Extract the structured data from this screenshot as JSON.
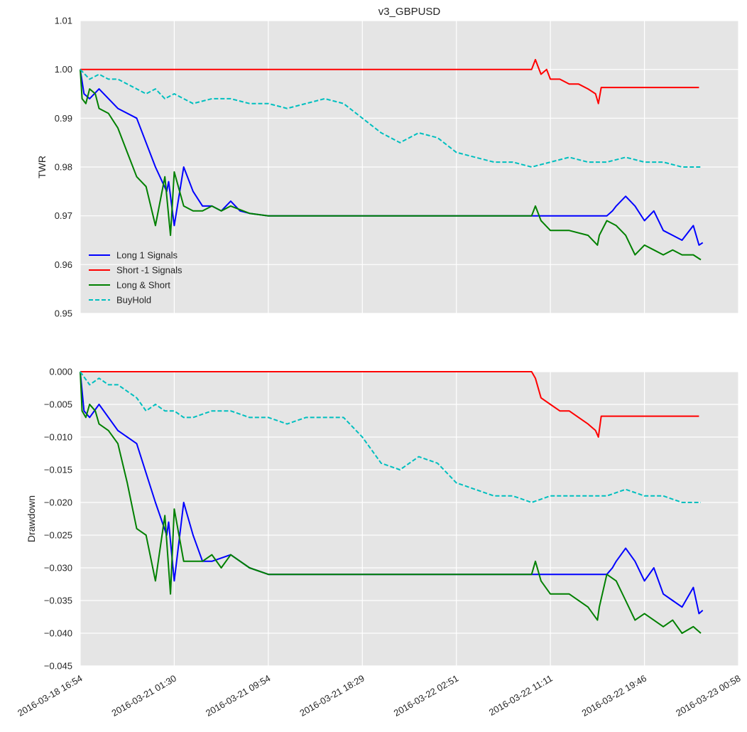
{
  "chart_data": [
    {
      "type": "line",
      "title": "v3_GBPUSD",
      "ylabel": "TWR",
      "ylim": [
        0.95,
        1.01
      ],
      "yticks": [
        "1.01",
        "1.00",
        "0.99",
        "0.98",
        "0.97",
        "0.96",
        "0.95"
      ],
      "ytick_values": [
        1.01,
        1.0,
        0.99,
        0.98,
        0.97,
        0.96,
        0.95
      ],
      "grid": true,
      "legend_position": "lower-left",
      "series": [
        {
          "name": "Long 1 Signals",
          "color": "#0000ff",
          "dash": "solid",
          "x": [
            0,
            0.02,
            0.05,
            0.1,
            0.2,
            0.3,
            0.4,
            0.46,
            0.47,
            0.5,
            0.55,
            0.6,
            0.65,
            0.66,
            0.7,
            0.75,
            0.8,
            0.85,
            0.9,
            1.0,
            1.5,
            2.0,
            2.39,
            2.41,
            2.45,
            2.5,
            2.55,
            2.6,
            2.7,
            2.76,
            2.78,
            2.8,
            2.83,
            2.85,
            2.9,
            2.95,
            3.0,
            3.05,
            3.1,
            3.15,
            3.2,
            3.26,
            3.29,
            3.31
          ],
          "y": [
            1.0,
            0.995,
            0.994,
            0.996,
            0.992,
            0.99,
            0.98,
            0.975,
            0.977,
            0.968,
            0.98,
            0.975,
            0.972,
            0.972,
            0.972,
            0.971,
            0.973,
            0.971,
            0.9705,
            0.97,
            0.97,
            0.97,
            0.97,
            0.97,
            0.97,
            0.97,
            0.97,
            0.97,
            0.97,
            0.97,
            0.97,
            0.97,
            0.971,
            0.972,
            0.974,
            0.972,
            0.969,
            0.971,
            0.967,
            0.966,
            0.965,
            0.968,
            0.964,
            0.9645
          ]
        },
        {
          "name": "Short -1 Signals",
          "color": "#ff0000",
          "dash": "solid",
          "x": [
            0,
            2.4,
            2.42,
            2.43,
            2.45,
            2.48,
            2.5,
            2.55,
            2.6,
            2.65,
            2.7,
            2.74,
            2.755,
            2.77,
            3.29
          ],
          "y": [
            1.0,
            1.0,
            1.002,
            1.001,
            0.999,
            1.0,
            0.998,
            0.998,
            0.997,
            0.997,
            0.996,
            0.995,
            0.993,
            0.9963,
            0.9963
          ]
        },
        {
          "name": "Long & Short",
          "color": "#008000",
          "dash": "solid",
          "x": [
            0,
            0.01,
            0.03,
            0.05,
            0.08,
            0.1,
            0.15,
            0.2,
            0.25,
            0.3,
            0.35,
            0.4,
            0.45,
            0.48,
            0.5,
            0.55,
            0.6,
            0.65,
            0.7,
            0.75,
            0.8,
            0.9,
            1.0,
            1.5,
            2.0,
            2.4,
            2.42,
            2.45,
            2.5,
            2.6,
            2.7,
            2.75,
            2.76,
            2.8,
            2.85,
            2.9,
            2.95,
            3.0,
            3.05,
            3.1,
            3.15,
            3.2,
            3.26,
            3.3
          ],
          "y": [
            1.0,
            0.994,
            0.993,
            0.996,
            0.995,
            0.992,
            0.991,
            0.988,
            0.983,
            0.978,
            0.976,
            0.968,
            0.978,
            0.966,
            0.979,
            0.972,
            0.971,
            0.971,
            0.972,
            0.971,
            0.972,
            0.9705,
            0.97,
            0.97,
            0.97,
            0.97,
            0.972,
            0.969,
            0.967,
            0.967,
            0.966,
            0.964,
            0.966,
            0.969,
            0.968,
            0.966,
            0.962,
            0.964,
            0.963,
            0.962,
            0.963,
            0.962,
            0.962,
            0.961
          ]
        },
        {
          "name": "BuyHold",
          "color": "#00bfbf",
          "dash": "dashed",
          "x": [
            0,
            0.05,
            0.1,
            0.15,
            0.2,
            0.25,
            0.3,
            0.35,
            0.4,
            0.45,
            0.5,
            0.55,
            0.6,
            0.7,
            0.8,
            0.9,
            1.0,
            1.1,
            1.2,
            1.3,
            1.4,
            1.5,
            1.6,
            1.7,
            1.8,
            1.9,
            2.0,
            2.1,
            2.2,
            2.3,
            2.4,
            2.5,
            2.6,
            2.7,
            2.8,
            2.9,
            3.0,
            3.1,
            3.2,
            3.3
          ],
          "y": [
            1.0,
            0.998,
            0.999,
            0.998,
            0.998,
            0.997,
            0.996,
            0.995,
            0.996,
            0.994,
            0.995,
            0.994,
            0.993,
            0.994,
            0.994,
            0.993,
            0.993,
            0.992,
            0.993,
            0.994,
            0.993,
            0.99,
            0.987,
            0.985,
            0.987,
            0.986,
            0.983,
            0.982,
            0.981,
            0.981,
            0.98,
            0.981,
            0.982,
            0.981,
            0.981,
            0.982,
            0.981,
            0.981,
            0.98,
            0.98
          ]
        }
      ],
      "legend": [
        "Long 1 Signals",
        "Short -1 Signals",
        "Long & Short",
        "BuyHold"
      ]
    },
    {
      "type": "line",
      "ylabel": "Drawdown",
      "ylim": [
        -0.045,
        0.0
      ],
      "yticks": [
        "0.000",
        "−0.005",
        "−0.010",
        "−0.015",
        "−0.020",
        "−0.025",
        "−0.030",
        "−0.035",
        "−0.040",
        "−0.045"
      ],
      "ytick_values": [
        0.0,
        -0.005,
        -0.01,
        -0.015,
        -0.02,
        -0.025,
        -0.03,
        -0.035,
        -0.04,
        -0.045
      ],
      "grid": true,
      "series": [
        {
          "name": "Long 1 Signals",
          "color": "#0000ff",
          "dash": "solid",
          "x": [
            0,
            0.02,
            0.05,
            0.1,
            0.2,
            0.3,
            0.4,
            0.46,
            0.47,
            0.5,
            0.55,
            0.6,
            0.65,
            0.7,
            0.8,
            0.9,
            1.0,
            1.5,
            2.0,
            2.39,
            2.41,
            2.5,
            2.6,
            2.7,
            2.76,
            2.8,
            2.83,
            2.85,
            2.9,
            2.95,
            3.0,
            3.05,
            3.1,
            3.15,
            3.2,
            3.26,
            3.29,
            3.31
          ],
          "y": [
            0.0,
            -0.006,
            -0.007,
            -0.005,
            -0.009,
            -0.011,
            -0.02,
            -0.025,
            -0.023,
            -0.032,
            -0.02,
            -0.025,
            -0.029,
            -0.029,
            -0.028,
            -0.03,
            -0.031,
            -0.031,
            -0.031,
            -0.031,
            -0.031,
            -0.031,
            -0.031,
            -0.031,
            -0.031,
            -0.031,
            -0.03,
            -0.029,
            -0.027,
            -0.029,
            -0.032,
            -0.03,
            -0.034,
            -0.035,
            -0.036,
            -0.033,
            -0.037,
            -0.0365
          ]
        },
        {
          "name": "Short -1 Signals",
          "color": "#ff0000",
          "dash": "solid",
          "x": [
            0,
            2.4,
            2.42,
            2.45,
            2.5,
            2.55,
            2.6,
            2.65,
            2.7,
            2.74,
            2.755,
            2.77,
            3.29
          ],
          "y": [
            0.0,
            0.0,
            -0.001,
            -0.004,
            -0.005,
            -0.006,
            -0.006,
            -0.007,
            -0.008,
            -0.009,
            -0.01,
            -0.0068,
            -0.0068
          ]
        },
        {
          "name": "Long & Short",
          "color": "#008000",
          "dash": "solid",
          "x": [
            0,
            0.01,
            0.03,
            0.05,
            0.08,
            0.1,
            0.15,
            0.2,
            0.25,
            0.3,
            0.35,
            0.4,
            0.45,
            0.48,
            0.5,
            0.55,
            0.6,
            0.65,
            0.7,
            0.75,
            0.8,
            0.9,
            1.0,
            1.5,
            2.0,
            2.4,
            2.42,
            2.45,
            2.5,
            2.6,
            2.7,
            2.75,
            2.76,
            2.8,
            2.85,
            2.9,
            2.95,
            3.0,
            3.05,
            3.1,
            3.15,
            3.2,
            3.26,
            3.3
          ],
          "y": [
            0.0,
            -0.006,
            -0.007,
            -0.005,
            -0.006,
            -0.008,
            -0.009,
            -0.011,
            -0.017,
            -0.024,
            -0.025,
            -0.032,
            -0.022,
            -0.034,
            -0.021,
            -0.029,
            -0.029,
            -0.029,
            -0.028,
            -0.03,
            -0.028,
            -0.03,
            -0.031,
            -0.031,
            -0.031,
            -0.031,
            -0.029,
            -0.032,
            -0.034,
            -0.034,
            -0.036,
            -0.038,
            -0.036,
            -0.031,
            -0.032,
            -0.035,
            -0.038,
            -0.037,
            -0.038,
            -0.039,
            -0.038,
            -0.04,
            -0.039,
            -0.04
          ]
        },
        {
          "name": "BuyHold",
          "color": "#00bfbf",
          "dash": "dashed",
          "x": [
            0,
            0.05,
            0.1,
            0.15,
            0.2,
            0.25,
            0.3,
            0.35,
            0.4,
            0.45,
            0.5,
            0.55,
            0.6,
            0.7,
            0.8,
            0.9,
            1.0,
            1.1,
            1.2,
            1.3,
            1.4,
            1.5,
            1.6,
            1.7,
            1.8,
            1.9,
            2.0,
            2.1,
            2.2,
            2.3,
            2.4,
            2.5,
            2.6,
            2.7,
            2.8,
            2.9,
            3.0,
            3.1,
            3.2,
            3.3
          ],
          "y": [
            0.0,
            -0.002,
            -0.001,
            -0.002,
            -0.002,
            -0.003,
            -0.004,
            -0.006,
            -0.005,
            -0.006,
            -0.006,
            -0.007,
            -0.007,
            -0.006,
            -0.006,
            -0.007,
            -0.007,
            -0.008,
            -0.007,
            -0.007,
            -0.007,
            -0.01,
            -0.014,
            -0.015,
            -0.013,
            -0.014,
            -0.017,
            -0.018,
            -0.019,
            -0.019,
            -0.02,
            -0.019,
            -0.019,
            -0.019,
            -0.019,
            -0.018,
            -0.019,
            -0.019,
            -0.02,
            -0.02
          ]
        }
      ]
    }
  ],
  "shared_x_axis": {
    "xlim": [
      0,
      3.5
    ],
    "tick_positions": [
      0,
      0.5,
      1.0,
      1.5,
      2.0,
      2.5,
      3.0,
      3.5
    ],
    "tick_labels": [
      "2016-03-18 16:54",
      "2016-03-21 01:30",
      "2016-03-21 09:54",
      "2016-03-21 18:29",
      "2016-03-22 02:51",
      "2016-03-22 11:11",
      "2016-03-22 19:46",
      "2016-03-23 00:58"
    ]
  },
  "colors": {
    "plot_background": "#e5e5e5",
    "grid": "#ffffff",
    "text": "#262626"
  }
}
